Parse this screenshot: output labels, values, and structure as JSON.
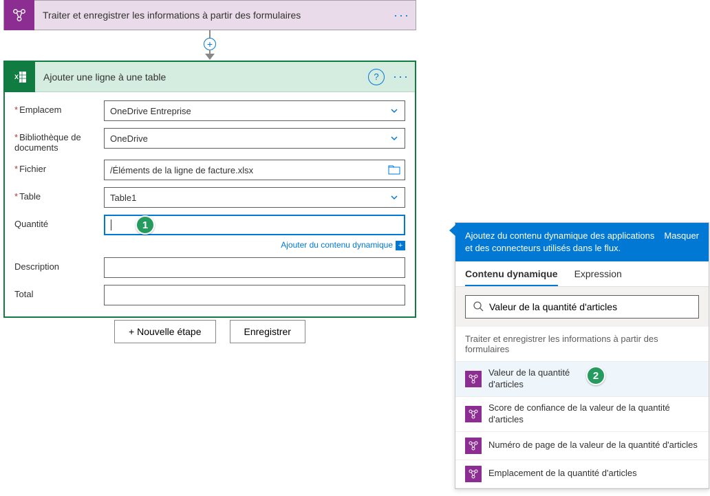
{
  "trigger": {
    "title": "Traiter et enregistrer les informations à partir des formulaires",
    "icon_color": "#8c2d91"
  },
  "action": {
    "title": "Ajouter une ligne à une table",
    "border_color": "#107c41",
    "header_bg": "#d4ede0",
    "fields": {
      "emplacement": {
        "label": "Emplacem",
        "value": "OneDrive Entreprise"
      },
      "bibliotheque": {
        "label": "Bibliothèque de documents",
        "value": "OneDrive"
      },
      "fichier": {
        "label": "Fichier",
        "value": "/Éléments de la ligne de facture.xlsx"
      },
      "table": {
        "label": "Table",
        "value": "Table1"
      },
      "quantite": {
        "label": "Quantité",
        "value": ""
      },
      "description": {
        "label": "Description",
        "value": ""
      },
      "total": {
        "label": "Total",
        "value": ""
      }
    },
    "dynamic_content_link": "Ajouter du contenu dynamique"
  },
  "buttons": {
    "new_step": "+ Nouvelle étape",
    "save": "Enregistrer"
  },
  "callouts": {
    "one": "1",
    "two": "2"
  },
  "panel": {
    "header_text": "Ajoutez du contenu dynamique des applications et des connecteurs utilisés dans le flux.",
    "hide_label": "Masquer",
    "tabs": {
      "dynamic": "Contenu dynamique",
      "expression": "Expression"
    },
    "search_value": "Valeur de la quantité d'articles",
    "section_title": "Traiter et enregistrer les informations à partir des formulaires",
    "items": [
      {
        "label": "Valeur de la quantité d'articles",
        "highlighted": true
      },
      {
        "label": "Score de confiance de la valeur de la quantité d'articles",
        "highlighted": false
      },
      {
        "label": "Numéro de page de la valeur de la quantité d'articles",
        "highlighted": false
      },
      {
        "label": "Emplacement de la quantité d'articles",
        "highlighted": false
      }
    ]
  },
  "colors": {
    "primary": "#0078d4",
    "excel": "#107c41",
    "aibuilder": "#8c2d91",
    "badge": "#259b5f"
  }
}
